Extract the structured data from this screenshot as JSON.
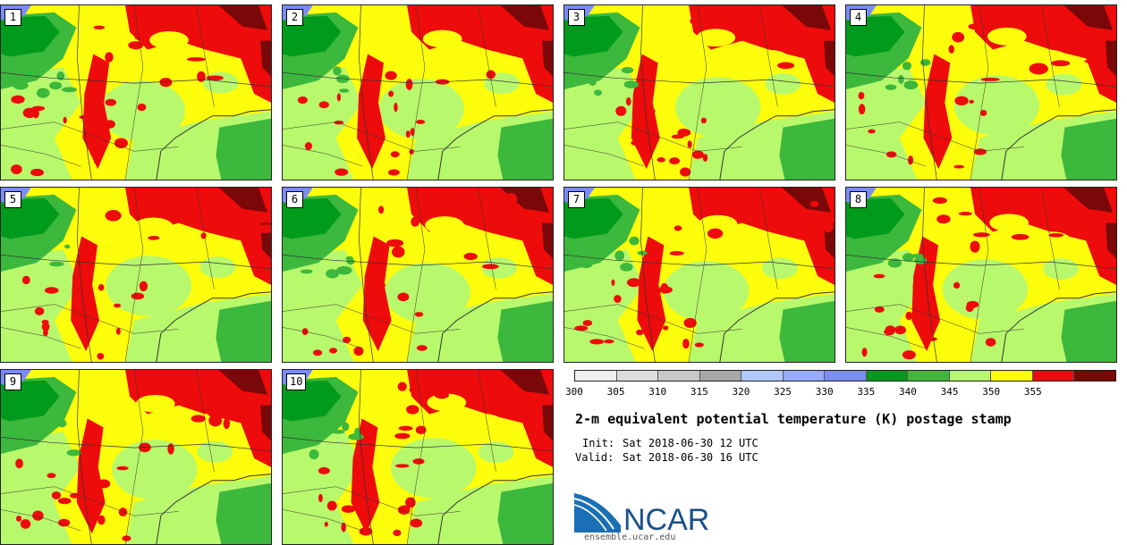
{
  "title": "2-m equivalent potential temperature (K) postage stamp",
  "init_label": "Init:",
  "init_value": "Sat 2018-06-30 12 UTC",
  "valid_label": "Valid:",
  "valid_value": "Sat 2018-06-30 16 UTC",
  "logo_text": "NCAR",
  "website": "ensemble.ucar.edu",
  "colorbar": {
    "ticks": [
      "300",
      "305",
      "310",
      "315",
      "320",
      "325",
      "330",
      "335",
      "340",
      "345",
      "350",
      "355"
    ],
    "colors": [
      "#efefef",
      "#dcdcdc",
      "#c8c8c8",
      "#a8a8a8",
      "#b0c8ff",
      "#96aaff",
      "#7a8cf5",
      "#009b1c",
      "#3cb83c",
      "#b8f86c",
      "#fdfd0c",
      "#ee0b0b",
      "#7a0808"
    ]
  },
  "members": [
    {
      "label": "1"
    },
    {
      "label": "2"
    },
    {
      "label": "3"
    },
    {
      "label": "4"
    },
    {
      "label": "5"
    },
    {
      "label": "6"
    },
    {
      "label": "7"
    },
    {
      "label": "8"
    },
    {
      "label": "9"
    },
    {
      "label": "10"
    }
  ],
  "colors": {
    "blue": "#7a8cf5",
    "dark_green": "#009b1c",
    "green": "#3cb83c",
    "light_green": "#b8f86c",
    "yellow": "#fdfd0c",
    "red": "#ee0b0b",
    "dark_red": "#7a0808"
  }
}
